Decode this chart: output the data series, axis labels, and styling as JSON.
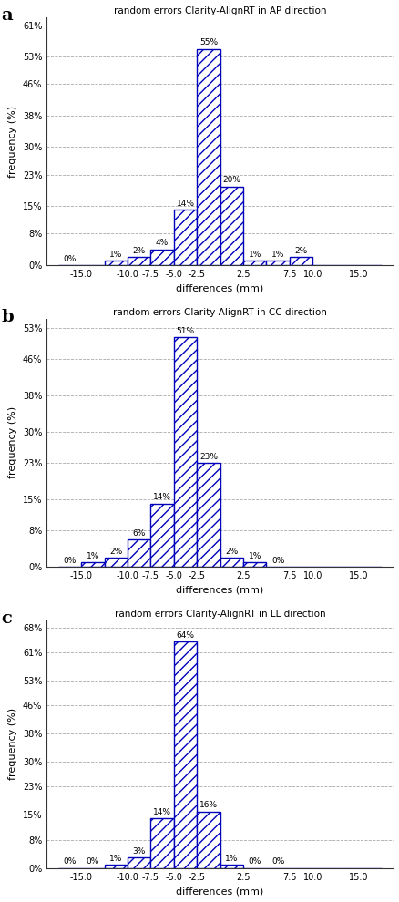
{
  "panels": [
    {
      "label": "a",
      "title": "random errors Clarity-AlignRT in AP direction",
      "values": [
        0,
        0,
        1,
        2,
        4,
        14,
        55,
        20,
        1,
        1,
        2,
        0,
        0,
        0
      ],
      "pct_labels": [
        "0%",
        "",
        "1%",
        "2%",
        "4%",
        "14%",
        "55%",
        "20%",
        "1%",
        "1%",
        "2%",
        "",
        "",
        ""
      ],
      "zero_labels": [
        true,
        false,
        false,
        false,
        false,
        false,
        false,
        false,
        false,
        false,
        false,
        false,
        false,
        false
      ],
      "yticks": [
        0,
        8,
        15,
        23,
        30,
        38,
        46,
        53,
        61
      ],
      "ylim": [
        0,
        63
      ]
    },
    {
      "label": "b",
      "title": "random errors Clarity-AlignRT in CC direction",
      "values": [
        0,
        1,
        2,
        6,
        14,
        51,
        23,
        2,
        1,
        0,
        0,
        0,
        0,
        0
      ],
      "pct_labels": [
        "0%",
        "1%",
        "2%",
        "6%",
        "14%",
        "51%",
        "23%",
        "2%",
        "1%",
        "0%",
        "",
        "",
        "",
        ""
      ],
      "zero_labels": [
        true,
        false,
        false,
        false,
        false,
        false,
        false,
        false,
        false,
        true,
        false,
        false,
        false,
        false
      ],
      "yticks": [
        0,
        8,
        15,
        23,
        30,
        38,
        46,
        53
      ],
      "ylim": [
        0,
        55
      ]
    },
    {
      "label": "c",
      "title": "random errors Clarity-AlignRT in LL direction",
      "values": [
        0,
        0,
        1,
        3,
        14,
        64,
        16,
        1,
        0,
        0,
        0,
        0,
        0,
        0
      ],
      "pct_labels": [
        "0%",
        "0%",
        "1%",
        "3%",
        "14%",
        "64%",
        "16%",
        "1%",
        "0%",
        "0%",
        "",
        "",
        "",
        ""
      ],
      "zero_labels": [
        true,
        true,
        false,
        false,
        false,
        false,
        false,
        false,
        true,
        true,
        false,
        false,
        false,
        false
      ],
      "yticks": [
        0,
        8,
        15,
        23,
        30,
        38,
        46,
        53,
        61,
        68
      ],
      "ylim": [
        0,
        70
      ]
    }
  ],
  "bar_color": "#0000bb",
  "hatch": "///",
  "xlabel": "differences (mm)",
  "ylabel": "frequency (%)",
  "xtick_labels": [
    "-15.0",
    "-10.0",
    "-7.5",
    "-5.0",
    "-2.5",
    "2.5",
    "7.5",
    "10.0",
    "15.0"
  ],
  "xtick_positions": [
    -15.0,
    -10.0,
    -7.5,
    -5.0,
    -2.5,
    2.5,
    7.5,
    10.0,
    15.0
  ],
  "bar_edges": [
    -17.5,
    -15.0,
    -12.5,
    -10.0,
    -7.5,
    -5.0,
    -2.5,
    0.0,
    2.5,
    5.0,
    7.5,
    10.0,
    12.5,
    15.0,
    17.5
  ],
  "bar_width": 2.5
}
